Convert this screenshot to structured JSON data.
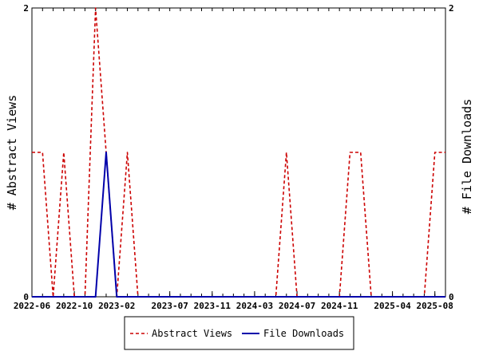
{
  "chart_data": {
    "type": "line",
    "x_axis": {
      "type": "date",
      "range": [
        "2022-06",
        "2025-09"
      ],
      "ticks": [
        "2022-06",
        "2022-10",
        "2023-02",
        "2023-07",
        "2023-11",
        "2024-03",
        "2024-07",
        "2024-11",
        "2025-04",
        "2025-08"
      ]
    },
    "y_left": {
      "label": "# Abstract Views",
      "range": [
        0,
        2
      ],
      "ticks": [
        "0",
        "2"
      ]
    },
    "y_right": {
      "label": "# File Downloads",
      "range": [
        0,
        2
      ],
      "ticks": [
        "0",
        "2"
      ]
    },
    "grid": false,
    "legend": {
      "position": "bottom-center"
    },
    "series": [
      {
        "name": "Abstract Views",
        "color": "#cc0000",
        "style": "dashed",
        "axis": "left",
        "x": [
          "2022-06",
          "2022-07",
          "2022-08",
          "2022-09",
          "2022-10",
          "2022-11",
          "2022-12",
          "2023-01",
          "2023-02",
          "2023-03",
          "2023-04",
          "2023-05",
          "2023-06",
          "2023-07",
          "2023-08",
          "2023-09",
          "2023-10",
          "2023-11",
          "2023-12",
          "2024-01",
          "2024-02",
          "2024-03",
          "2024-04",
          "2024-05",
          "2024-06",
          "2024-07",
          "2024-08",
          "2024-09",
          "2024-10",
          "2024-11",
          "2024-12",
          "2025-01",
          "2025-02",
          "2025-03",
          "2025-04",
          "2025-05",
          "2025-06",
          "2025-07",
          "2025-08",
          "2025-09"
        ],
        "values": [
          1,
          1,
          0,
          1,
          0,
          0,
          2,
          1,
          0,
          1,
          0,
          0,
          0,
          0,
          0,
          0,
          0,
          0,
          0,
          0,
          0,
          0,
          0,
          0,
          1,
          0,
          0,
          0,
          0,
          0,
          1,
          1,
          0,
          0,
          0,
          0,
          0,
          0,
          1,
          1
        ]
      },
      {
        "name": "File Downloads",
        "color": "#0000aa",
        "style": "solid",
        "axis": "right",
        "x": [
          "2022-06",
          "2022-07",
          "2022-08",
          "2022-09",
          "2022-10",
          "2022-11",
          "2022-12",
          "2023-01",
          "2023-02",
          "2023-03",
          "2023-04",
          "2023-05",
          "2023-06",
          "2023-07",
          "2023-08",
          "2023-09",
          "2023-10",
          "2023-11",
          "2023-12",
          "2024-01",
          "2024-02",
          "2024-03",
          "2024-04",
          "2024-05",
          "2024-06",
          "2024-07",
          "2024-08",
          "2024-09",
          "2024-10",
          "2024-11",
          "2024-12",
          "2025-01",
          "2025-02",
          "2025-03",
          "2025-04",
          "2025-05",
          "2025-06",
          "2025-07",
          "2025-08",
          "2025-09"
        ],
        "values": [
          0,
          0,
          0,
          0,
          0,
          0,
          0,
          1,
          0,
          0,
          0,
          0,
          0,
          0,
          0,
          0,
          0,
          0,
          0,
          0,
          0,
          0,
          0,
          0,
          0,
          0,
          0,
          0,
          0,
          0,
          0,
          0,
          0,
          0,
          0,
          0,
          0,
          0,
          0,
          0
        ]
      }
    ]
  }
}
